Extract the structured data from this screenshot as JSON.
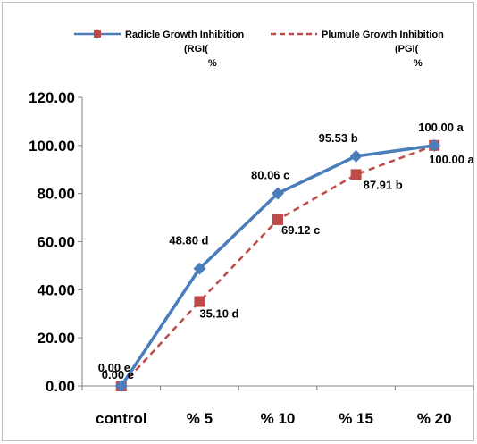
{
  "chart_data": {
    "type": "line",
    "categories": [
      "control",
      "% 5",
      "% 10",
      "% 15",
      "% 20"
    ],
    "ylim": [
      0,
      120
    ],
    "y_ticks": [
      "0.00",
      "20.00",
      "40.00",
      "60.00",
      "80.00",
      "100.00",
      "120.00"
    ],
    "series": [
      {
        "name": "Radicle Growth  Inhibition",
        "name_lines": [
          "(RGI(",
          "%"
        ],
        "values": [
          0,
          48.8,
          80.06,
          95.53,
          100
        ],
        "labels": [
          "0.00 e",
          "48.80 d",
          "80.06 c",
          "95.53 b",
          "100.00 a"
        ],
        "color": "#4a7ebb",
        "marker": "diamond",
        "dash": "solid"
      },
      {
        "name": "Plumule Growth  Inhibition",
        "name_lines": [
          "(PGI(",
          "%"
        ],
        "values": [
          0,
          35.1,
          69.12,
          87.91,
          100
        ],
        "labels": [
          "0.00 e",
          "35.10 d",
          "69.12 c",
          "87.91 b",
          "100.00 a"
        ],
        "color": "#be4b48",
        "marker": "square",
        "dash": "dashed"
      }
    ],
    "grid": false,
    "legend_position": "top"
  }
}
